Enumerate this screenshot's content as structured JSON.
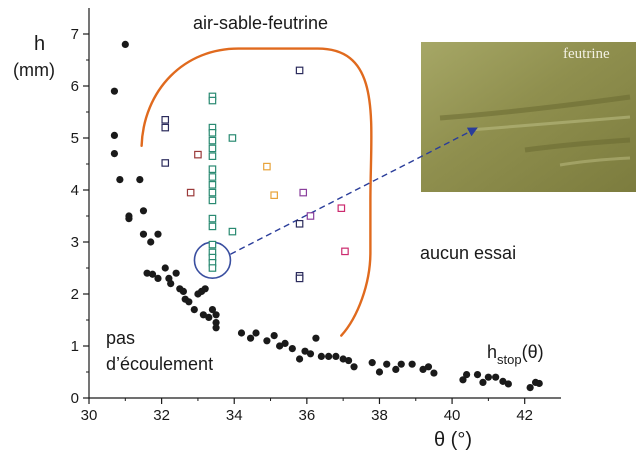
{
  "chart_data": {
    "type": "scatter",
    "xlim": [
      30,
      43
    ],
    "ylim": [
      0,
      7.5
    ],
    "xticks": [
      "30",
      "32",
      "34",
      "36",
      "38",
      "40",
      "42"
    ],
    "yticks": [
      "0",
      "1",
      "2",
      "3",
      "4",
      "5",
      "6",
      "7"
    ],
    "xlabel": "θ (°)",
    "ylabel": "h",
    "ylabel_unit": "(mm)",
    "grid": false,
    "annotations": {
      "region_top": "air-sable-feutrine",
      "no_flow_line1": "pas",
      "no_flow_line2": "d’écoulement",
      "no_test": "aucun essai",
      "hstop_main": "h",
      "hstop_sub": "stop",
      "hstop_arg": "(θ)",
      "photo_label": "feutrine"
    },
    "colors": {
      "hstop_points": "#1a1a1a",
      "region_outline": "#e06a1e",
      "highlight_circle": "#3a4fa0",
      "arrow": "#2a3d9a",
      "photo_base": "#8f8f4e"
    },
    "series": [
      {
        "marker": "filled-circle",
        "points": [
          [
            31.0,
            6.8
          ],
          [
            30.7,
            5.9
          ],
          [
            30.7,
            5.05
          ],
          [
            30.7,
            4.7
          ],
          [
            30.85,
            4.2
          ],
          [
            31.4,
            4.2
          ],
          [
            31.1,
            3.5
          ],
          [
            31.1,
            3.45
          ],
          [
            31.5,
            3.6
          ],
          [
            31.5,
            3.15
          ],
          [
            31.7,
            3.0
          ],
          [
            31.9,
            3.15
          ],
          [
            31.6,
            2.4
          ],
          [
            31.75,
            2.38
          ],
          [
            31.9,
            2.3
          ],
          [
            32.1,
            2.5
          ],
          [
            32.25,
            2.2
          ],
          [
            32.4,
            2.4
          ],
          [
            32.5,
            2.1
          ],
          [
            32.6,
            2.05
          ],
          [
            32.2,
            2.3
          ],
          [
            32.65,
            1.9
          ],
          [
            32.75,
            1.85
          ],
          [
            32.9,
            1.7
          ],
          [
            33.0,
            2.0
          ],
          [
            33.1,
            2.05
          ],
          [
            33.2,
            2.1
          ],
          [
            33.15,
            1.6
          ],
          [
            33.3,
            1.55
          ],
          [
            33.4,
            1.7
          ],
          [
            33.5,
            1.6
          ],
          [
            33.5,
            1.45
          ],
          [
            33.5,
            1.35
          ],
          [
            34.2,
            1.25
          ],
          [
            34.45,
            1.15
          ],
          [
            34.6,
            1.25
          ],
          [
            34.9,
            1.1
          ],
          [
            35.1,
            1.2
          ],
          [
            35.25,
            1.0
          ],
          [
            35.4,
            1.05
          ],
          [
            35.6,
            0.95
          ],
          [
            35.8,
            0.75
          ],
          [
            35.95,
            0.9
          ],
          [
            36.1,
            0.85
          ],
          [
            36.25,
            1.15
          ],
          [
            36.4,
            0.8
          ],
          [
            36.6,
            0.8
          ],
          [
            36.8,
            0.8
          ],
          [
            37.0,
            0.75
          ],
          [
            37.15,
            0.72
          ],
          [
            37.3,
            0.6
          ],
          [
            37.8,
            0.68
          ],
          [
            38.0,
            0.5
          ],
          [
            38.2,
            0.65
          ],
          [
            38.45,
            0.55
          ],
          [
            38.6,
            0.65
          ],
          [
            38.9,
            0.65
          ],
          [
            39.2,
            0.55
          ],
          [
            39.35,
            0.6
          ],
          [
            39.5,
            0.48
          ],
          [
            40.3,
            0.35
          ],
          [
            40.4,
            0.45
          ],
          [
            40.7,
            0.45
          ],
          [
            40.85,
            0.3
          ],
          [
            41.0,
            0.4
          ],
          [
            41.2,
            0.4
          ],
          [
            41.4,
            0.32
          ],
          [
            41.55,
            0.27
          ],
          [
            42.15,
            0.2
          ],
          [
            42.3,
            0.3
          ],
          [
            42.4,
            0.28
          ]
        ]
      },
      {
        "marker": "open-square",
        "points": [
          [
            33.4,
            5.8
          ],
          [
            33.4,
            5.72
          ],
          [
            33.4,
            5.2
          ],
          [
            33.4,
            5.1
          ],
          [
            33.4,
            4.95
          ],
          [
            33.4,
            4.8
          ],
          [
            33.4,
            4.65
          ],
          [
            33.4,
            4.4
          ],
          [
            33.4,
            4.25
          ],
          [
            33.4,
            4.1
          ],
          [
            33.4,
            3.95
          ],
          [
            33.4,
            3.8
          ],
          [
            33.4,
            3.45
          ],
          [
            33.4,
            3.3
          ],
          [
            33.4,
            2.95
          ],
          [
            33.4,
            2.8
          ],
          [
            33.4,
            2.7
          ],
          [
            33.4,
            2.6
          ],
          [
            33.4,
            2.5
          ],
          [
            33.95,
            5.0
          ],
          [
            33.95,
            3.2
          ]
        ],
        "color": "#2a8a72"
      },
      {
        "marker": "open-square",
        "points": [
          [
            32.1,
            5.35
          ],
          [
            32.1,
            5.2
          ],
          [
            32.1,
            4.52
          ],
          [
            35.8,
            6.3
          ],
          [
            35.8,
            3.35
          ],
          [
            35.8,
            2.35
          ],
          [
            35.8,
            2.3
          ]
        ],
        "color": "#2b2b5c"
      },
      {
        "marker": "open-square",
        "points": [
          [
            33.0,
            4.68
          ],
          [
            32.8,
            3.95
          ]
        ],
        "color": "#9b3a3a"
      },
      {
        "marker": "open-square",
        "points": [
          [
            34.9,
            4.45
          ],
          [
            35.1,
            3.9
          ]
        ],
        "color": "#e8a33a"
      },
      {
        "marker": "open-square",
        "points": [
          [
            35.9,
            3.95
          ],
          [
            36.1,
            3.5
          ]
        ],
        "color": "#8a3f9c"
      },
      {
        "marker": "open-square",
        "points": [
          [
            36.95,
            3.65
          ],
          [
            37.05,
            2.82
          ]
        ],
        "color": "#cc2a6e"
      }
    ]
  }
}
